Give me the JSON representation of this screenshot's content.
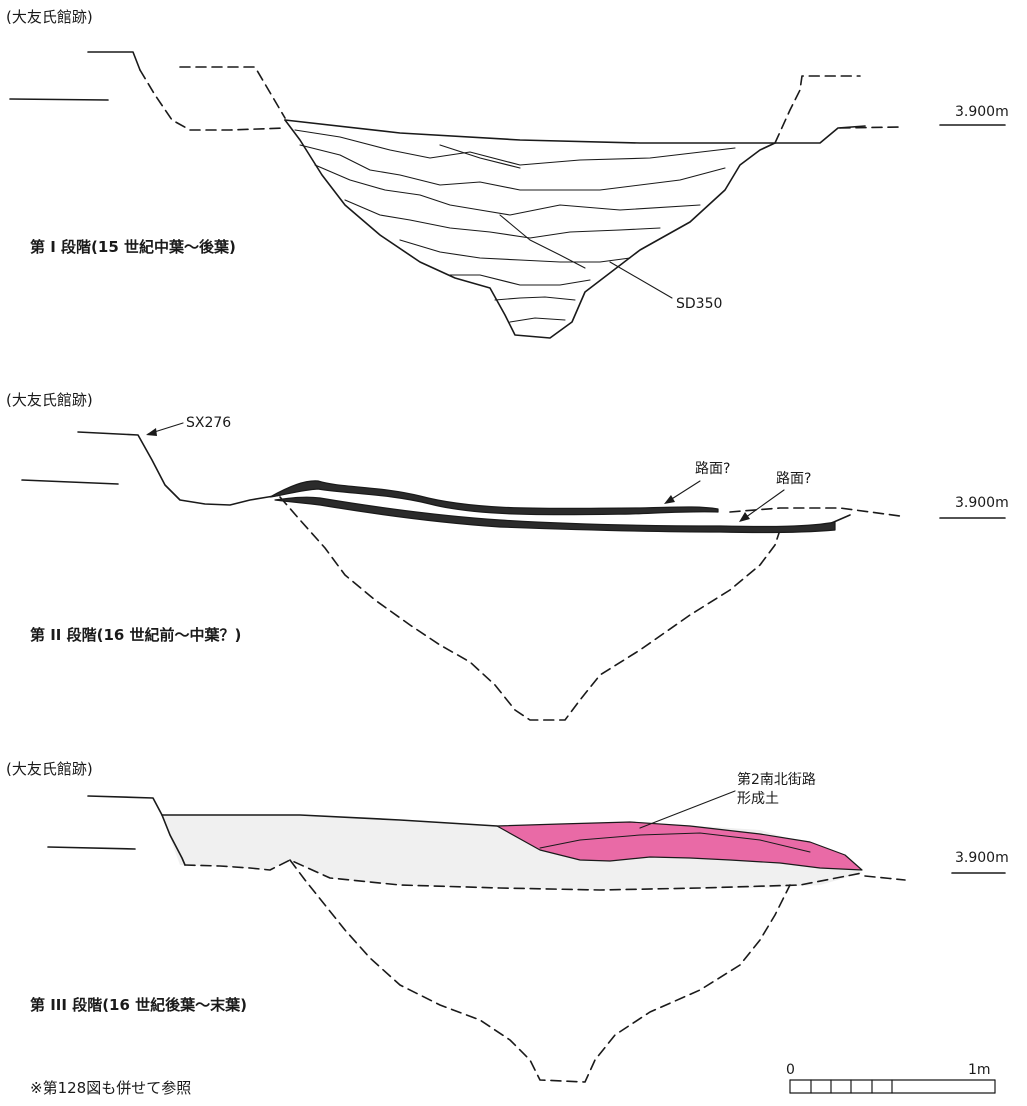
{
  "sections": [
    {
      "site": "(大友氏館跡)",
      "stage": "第 I 段階(15 世紀中葉～後葉)",
      "elevation": "3.900m",
      "feature_label": "SD350"
    },
    {
      "site": "(大友氏館跡)",
      "stage": "第 II 段階(16 世紀前～中葉？)",
      "elevation": "3.900m",
      "feature_label": "SX276",
      "road_label_1": "路面?",
      "road_label_2": "路面?"
    },
    {
      "site": "(大友氏館跡)",
      "stage": "第 III 段階(16 世紀後葉～末葉)",
      "elevation": "3.900m",
      "fill_label": "第2南北街路\n形成土"
    }
  ],
  "scale_bar": {
    "start": "0",
    "end": "1m"
  },
  "footnote": "※第128図も併せて参照",
  "colors": {
    "line": "#1a1a1a",
    "fill_gray": "#f0f0f0",
    "fill_pink": "#e96aa6",
    "dark_layer": "#2b2b2b"
  }
}
